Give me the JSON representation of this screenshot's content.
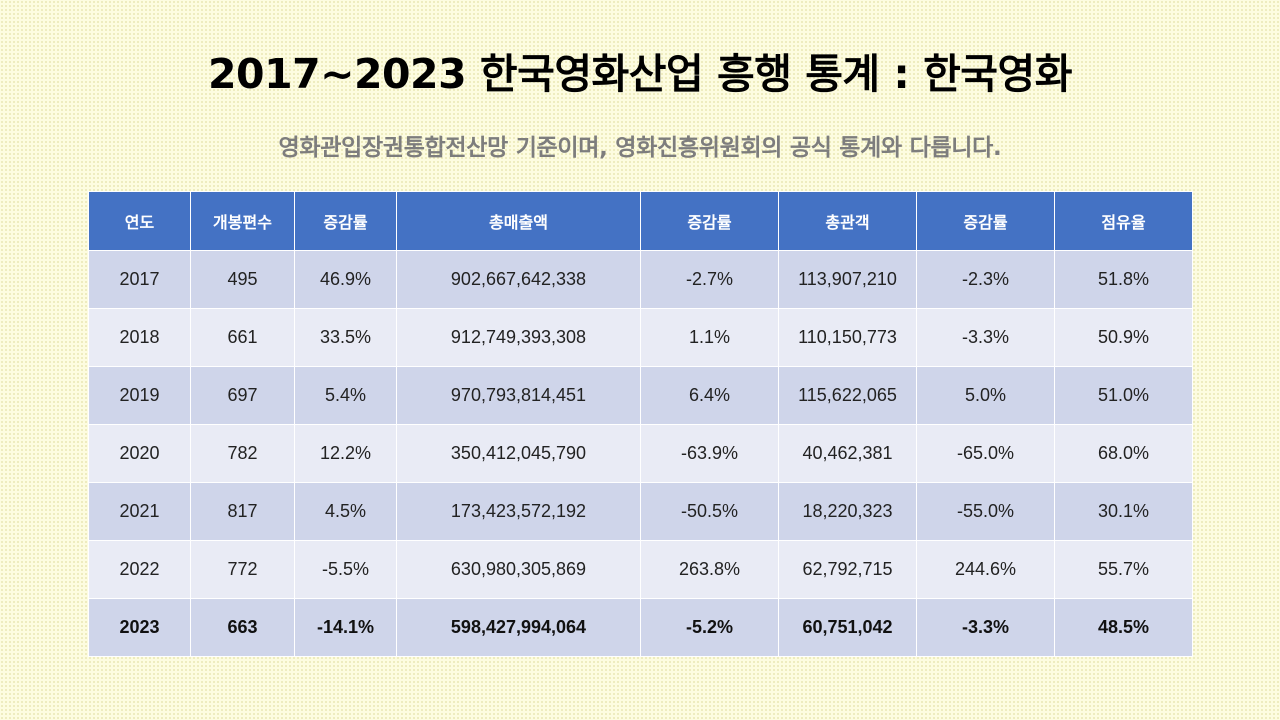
{
  "header": {
    "title": "2017~2023 한국영화산업 흥행 통계 : 한국영화",
    "subtitle": "영화관입장권통합전산망 기준이며, 영화진흥위원회의 공식 통계와 다릅니다."
  },
  "table": {
    "columns": [
      "연도",
      "개봉편수",
      "증감률",
      "총매출액",
      "증감률",
      "총관객",
      "증감률",
      "점유율"
    ],
    "rows": [
      [
        "2017",
        "495",
        "46.9%",
        "902,667,642,338",
        "-2.7%",
        "113,907,210",
        "-2.3%",
        "51.8%"
      ],
      [
        "2018",
        "661",
        "33.5%",
        "912,749,393,308",
        "1.1%",
        "110,150,773",
        "-3.3%",
        "50.9%"
      ],
      [
        "2019",
        "697",
        "5.4%",
        "970,793,814,451",
        "6.4%",
        "115,622,065",
        "5.0%",
        "51.0%"
      ],
      [
        "2020",
        "782",
        "12.2%",
        "350,412,045,790",
        "-63.9%",
        "40,462,381",
        "-65.0%",
        "68.0%"
      ],
      [
        "2021",
        "817",
        "4.5%",
        "173,423,572,192",
        "-50.5%",
        "18,220,323",
        "-55.0%",
        "30.1%"
      ],
      [
        "2022",
        "772",
        "-5.5%",
        "630,980,305,869",
        "263.8%",
        "62,792,715",
        "244.6%",
        "55.7%"
      ],
      [
        "2023",
        "663",
        "-14.1%",
        "598,427,994,064",
        "-5.2%",
        "60,751,042",
        "-3.3%",
        "48.5%"
      ]
    ]
  },
  "colors": {
    "background": "#fdfce0",
    "header_row": "#4472c4",
    "row_odd": "#cfd5ea",
    "row_even": "#e9ebf5",
    "subtitle_text": "#7d7d7d"
  }
}
